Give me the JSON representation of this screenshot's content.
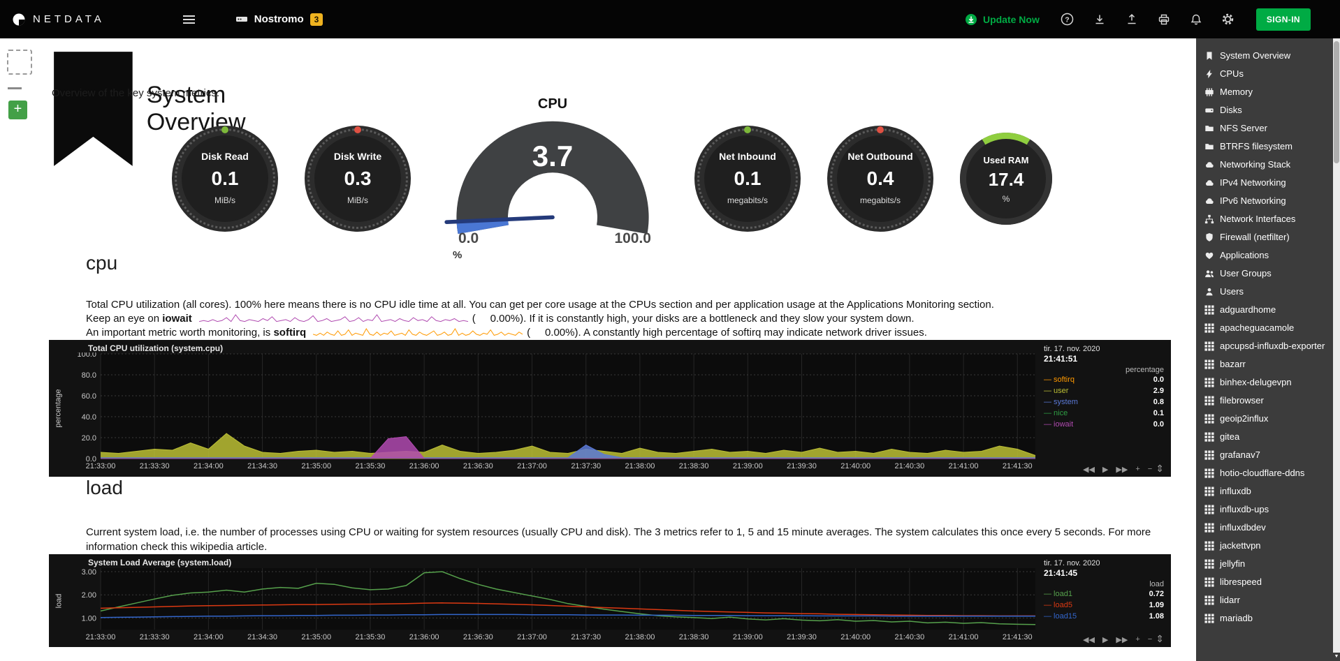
{
  "colors": {
    "brand_green": "#00ab44",
    "badge_amber": "#efb320"
  },
  "navbar": {
    "brand": "NETDATA",
    "host": "Nostromo",
    "host_badge": "3",
    "update_now": "Update Now",
    "signin": "SIGN-IN",
    "icons": [
      "help",
      "download",
      "upload",
      "print",
      "notifications",
      "settings"
    ]
  },
  "page": {
    "title": "System Overview",
    "subtitle": "Overview of the key system metrics.",
    "add_button": "+"
  },
  "gauges": {
    "disk_read": {
      "label": "Disk Read",
      "value": "0.1",
      "unit": "MiB/s",
      "dot": "#7db83a"
    },
    "disk_write": {
      "label": "Disk Write",
      "value": "0.3",
      "unit": "MiB/s",
      "dot": "#e05143"
    },
    "cpu": {
      "label": "CPU",
      "value": "3.7",
      "min": "0.0",
      "max": "100.0",
      "unit": "%"
    },
    "net_inbound": {
      "label": "Net Inbound",
      "value": "0.1",
      "unit": "megabits/s",
      "dot": "#7db83a"
    },
    "net_outbound": {
      "label": "Net Outbound",
      "value": "0.4",
      "unit": "megabits/s",
      "dot": "#e05143"
    },
    "used_ram": {
      "label": "Used RAM",
      "value": "17.4",
      "unit": "%",
      "percent": 17.4,
      "color": "#8fce3f"
    }
  },
  "cpu_section": {
    "heading": "cpu",
    "desc1": "Total CPU utilization (all cores). 100% here means there is no CPU idle time at all. You can get per core usage at the CPUs section and per application usage at the Applications Monitoring section.",
    "desc2_pre": "Keep an eye on ",
    "desc2_bold": "iowait",
    "desc2_post": "(     0.00%). If it is constantly high, your disks are a bottleneck and they slow your system down.",
    "desc3_pre": "An important metric worth monitoring, is ",
    "desc3_bold": "softirq",
    "desc3_post": "(     0.00%). A constantly high percentage of softirq may indicate network driver issues.",
    "spark_iowait": {
      "color": "#b04ab0",
      "points": [
        1,
        2,
        1,
        3,
        1,
        2,
        5,
        1,
        8,
        2,
        1,
        3,
        2,
        1,
        4,
        2,
        6,
        1,
        2,
        3,
        1,
        5,
        2,
        1,
        3,
        7,
        1,
        2,
        4,
        1,
        2,
        3,
        6,
        1,
        2,
        5,
        1,
        3,
        2,
        8,
        1,
        2,
        3,
        1,
        4,
        2,
        1,
        5,
        2,
        3,
        1,
        6,
        2,
        1,
        3,
        2,
        4,
        1,
        2,
        1
      ]
    },
    "spark_softirq": {
      "color": "#ff9900",
      "points": [
        2,
        1,
        3,
        1,
        4,
        2,
        1,
        5,
        1,
        2,
        6,
        1,
        3,
        2,
        1,
        7,
        2,
        1,
        4,
        1,
        3,
        2,
        5,
        1,
        2,
        3,
        1,
        6,
        2,
        1,
        4,
        2,
        1,
        3,
        5,
        1,
        2,
        4,
        1,
        2,
        7,
        1,
        3,
        1,
        2,
        5,
        2,
        1,
        3,
        2,
        6,
        1,
        2,
        4,
        1,
        3,
        2,
        1,
        4,
        2
      ]
    }
  },
  "load_section": {
    "heading": "load",
    "desc": "Current system load, i.e. the number of processes using CPU or waiting for system resources (usually CPU and disk). The 3 metrics refer to 1, 5 and 15 minute averages. The system calculates this once every 5 seconds. For more information check this wikipedia article."
  },
  "chart_ui": {
    "toolbar": [
      {
        "name": "pan-left",
        "glyph": "◀◀"
      },
      {
        "name": "play",
        "glyph": "▶"
      },
      {
        "name": "pan-right",
        "glyph": "▶▶"
      },
      {
        "name": "zoom-in",
        "glyph": "+"
      },
      {
        "name": "zoom-out",
        "glyph": "−"
      }
    ],
    "resize": "⇕"
  },
  "chart_data": [
    {
      "type": "area",
      "title": "Total CPU utilization (system.cpu)",
      "ylabel": "percentage",
      "ylim": [
        0,
        100
      ],
      "yticks": [
        {
          "v": 100,
          "l": "100.0"
        },
        {
          "v": 80,
          "l": "80.0"
        },
        {
          "v": 60,
          "l": "60.0"
        },
        {
          "v": 40,
          "l": "40.0"
        },
        {
          "v": 20,
          "l": "20.0"
        },
        {
          "v": 0,
          "l": "0.0"
        }
      ],
      "interval_sec": 10,
      "xtick_interval_sec": 30,
      "xticks": [
        "21:33:00",
        "21:33:30",
        "21:34:00",
        "21:34:30",
        "21:35:00",
        "21:35:30",
        "21:36:00",
        "21:36:30",
        "21:37:00",
        "21:37:30",
        "21:38:00",
        "21:38:30",
        "21:39:00",
        "21:39:30",
        "21:40:00",
        "21:40:30",
        "21:41:00",
        "21:41:30"
      ],
      "legend_date": "tir. 17. nov. 2020",
      "legend_time": "21:41:51",
      "legend_units": "percentage",
      "series": [
        {
          "name": "softirq",
          "color": "#ff9900",
          "value": "0.0",
          "points": [
            0,
            0,
            0,
            0,
            0,
            0,
            0,
            0,
            0,
            0,
            0,
            0,
            0,
            0,
            0,
            0,
            0,
            0,
            0,
            0,
            0,
            0,
            0,
            0,
            0,
            0,
            0,
            0,
            0,
            0,
            0,
            0,
            0,
            0,
            0,
            0,
            0,
            0,
            0,
            0,
            0,
            0,
            0,
            0,
            0,
            0,
            0,
            0,
            0,
            0,
            0,
            0,
            0
          ]
        },
        {
          "name": "user",
          "color": "#bcbf35",
          "value": "2.9",
          "points": [
            6,
            5,
            7,
            9,
            8,
            15,
            9,
            24,
            12,
            6,
            5,
            7,
            8,
            6,
            7,
            5,
            6,
            7,
            6,
            13,
            7,
            5,
            6,
            8,
            12,
            6,
            5,
            9,
            7,
            5,
            10,
            6,
            5,
            7,
            9,
            6,
            7,
            5,
            8,
            6,
            10,
            6,
            7,
            5,
            9,
            6,
            5,
            8,
            6,
            7,
            12,
            9,
            3
          ]
        },
        {
          "name": "system",
          "color": "#5b79d6",
          "value": "0.8",
          "points": [
            0.8,
            0.8,
            0.8,
            0.8,
            0.8,
            0.8,
            0.8,
            0.8,
            0.8,
            0.8,
            0.8,
            0.8,
            0.8,
            0.8,
            0.8,
            0.8,
            0.8,
            0.8,
            0.8,
            0.8,
            0.8,
            0.8,
            0.8,
            0.8,
            0.8,
            0.8,
            0.8,
            13,
            4,
            0.8,
            0.8,
            0.8,
            0.8,
            0.8,
            0.8,
            0.8,
            0.8,
            0.8,
            0.8,
            0.8,
            0.8,
            0.8,
            0.8,
            0.8,
            0.8,
            0.8,
            0.8,
            0.8,
            0.8,
            0.8,
            0.8,
            0.8,
            0.8
          ]
        },
        {
          "name": "nice",
          "color": "#2f9e44",
          "value": "0.1",
          "points": [
            0.1,
            0.1,
            0.1,
            0.1,
            0.1,
            0.1,
            0.1,
            0.1,
            0.1,
            0.1,
            0.1,
            0.1,
            0.1,
            0.1,
            0.1,
            0.1,
            0.1,
            0.1,
            0.1,
            0.1,
            0.1,
            0.1,
            0.1,
            0.1,
            0.1,
            0.1,
            0.1,
            0.1,
            0.1,
            0.1,
            0.1,
            0.1,
            0.1,
            0.1,
            0.1,
            0.1,
            0.1,
            0.1,
            0.1,
            0.1,
            0.1,
            0.1,
            0.1,
            0.1,
            0.1,
            0.1,
            0.1,
            0.1,
            0.1,
            0.1,
            0.1,
            0.1,
            0.1
          ]
        },
        {
          "name": "iowait",
          "color": "#b04ab0",
          "value": "0.0",
          "points": [
            0,
            0,
            0,
            0,
            0,
            0,
            0,
            0,
            0,
            0,
            0,
            0,
            0,
            0,
            0,
            0,
            19,
            21,
            0,
            0,
            0,
            0,
            0,
            0,
            0,
            0,
            0,
            0,
            0,
            0,
            0,
            0,
            0,
            0,
            0,
            0,
            0,
            0,
            0,
            0,
            0,
            0,
            0,
            0,
            0,
            0,
            0,
            0,
            0,
            0,
            0,
            0,
            0
          ]
        }
      ]
    },
    {
      "type": "line",
      "title": "System Load Average (system.load)",
      "ylabel": "load",
      "ylim": [
        0.5,
        3.15
      ],
      "yticks": [
        {
          "v": 3,
          "l": "3.00"
        },
        {
          "v": 2,
          "l": "2.00"
        },
        {
          "v": 1,
          "l": "1.00"
        }
      ],
      "interval_sec": 10,
      "xtick_interval_sec": 30,
      "xticks": [
        "21:33:00",
        "21:33:30",
        "21:34:00",
        "21:34:30",
        "21:35:00",
        "21:35:30",
        "21:36:00",
        "21:36:30",
        "21:37:00",
        "21:37:30",
        "21:38:00",
        "21:38:30",
        "21:39:00",
        "21:39:30",
        "21:40:00",
        "21:40:30",
        "21:41:00",
        "21:41:30"
      ],
      "legend_date": "tir. 17. nov. 2020",
      "legend_time": "21:41:45",
      "legend_units": "load",
      "series": [
        {
          "name": "load1",
          "color": "#56a14c",
          "value": "0.72",
          "points": [
            1.3,
            1.48,
            1.65,
            1.82,
            1.98,
            2.08,
            2.12,
            2.2,
            2.12,
            2.25,
            2.32,
            2.28,
            2.5,
            2.45,
            2.3,
            2.22,
            2.25,
            2.4,
            2.95,
            3.0,
            2.7,
            2.45,
            2.25,
            2.1,
            1.95,
            1.8,
            1.62,
            1.5,
            1.38,
            1.28,
            1.18,
            1.1,
            1.05,
            1.02,
            0.98,
            1.04,
            0.96,
            0.92,
            0.97,
            0.91,
            0.88,
            0.93,
            0.86,
            0.89,
            0.83,
            0.86,
            0.79,
            0.82,
            0.77,
            0.8,
            0.75,
            0.73,
            0.72
          ]
        },
        {
          "name": "load5",
          "color": "#dc3912",
          "value": "1.09",
          "points": [
            1.42,
            1.44,
            1.46,
            1.48,
            1.5,
            1.52,
            1.53,
            1.54,
            1.55,
            1.56,
            1.57,
            1.58,
            1.58,
            1.59,
            1.6,
            1.6,
            1.61,
            1.62,
            1.64,
            1.65,
            1.64,
            1.63,
            1.61,
            1.59,
            1.57,
            1.54,
            1.51,
            1.48,
            1.45,
            1.42,
            1.39,
            1.36,
            1.33,
            1.3,
            1.28,
            1.26,
            1.24,
            1.22,
            1.21,
            1.19,
            1.18,
            1.16,
            1.15,
            1.14,
            1.13,
            1.12,
            1.11,
            1.11,
            1.1,
            1.1,
            1.09,
            1.09,
            1.09
          ]
        },
        {
          "name": "load15",
          "color": "#3366cc",
          "value": "1.08",
          "points": [
            1.02,
            1.03,
            1.04,
            1.05,
            1.06,
            1.07,
            1.08,
            1.08,
            1.09,
            1.1,
            1.1,
            1.11,
            1.11,
            1.12,
            1.12,
            1.13,
            1.13,
            1.14,
            1.14,
            1.15,
            1.15,
            1.15,
            1.15,
            1.15,
            1.14,
            1.14,
            1.14,
            1.13,
            1.13,
            1.13,
            1.12,
            1.12,
            1.12,
            1.11,
            1.11,
            1.11,
            1.1,
            1.1,
            1.1,
            1.1,
            1.09,
            1.09,
            1.09,
            1.09,
            1.08,
            1.08,
            1.08,
            1.08,
            1.08,
            1.08,
            1.08,
            1.08,
            1.08
          ]
        }
      ]
    }
  ],
  "sidebar": {
    "items": [
      {
        "icon": "bookmark",
        "label": "System Overview"
      },
      {
        "icon": "bolt",
        "label": "CPUs"
      },
      {
        "icon": "memory",
        "label": "Memory"
      },
      {
        "icon": "disk",
        "label": "Disks"
      },
      {
        "icon": "folder",
        "label": "NFS Server"
      },
      {
        "icon": "folder",
        "label": "BTRFS filesystem"
      },
      {
        "icon": "cloud",
        "label": "Networking Stack"
      },
      {
        "icon": "cloud",
        "label": "IPv4 Networking"
      },
      {
        "icon": "cloud",
        "label": "IPv6 Networking"
      },
      {
        "icon": "sitemap",
        "label": "Network Interfaces"
      },
      {
        "icon": "shield",
        "label": "Firewall (netfilter)"
      },
      {
        "icon": "heart",
        "label": "Applications"
      },
      {
        "icon": "users",
        "label": "User Groups"
      },
      {
        "icon": "user",
        "label": "Users"
      },
      {
        "icon": "grid",
        "label": "adguardhome"
      },
      {
        "icon": "grid",
        "label": "apacheguacamole"
      },
      {
        "icon": "grid",
        "label": "apcupsd-influxdb-exporter"
      },
      {
        "icon": "grid",
        "label": "bazarr"
      },
      {
        "icon": "grid",
        "label": "binhex-delugevpn"
      },
      {
        "icon": "grid",
        "label": "filebrowser"
      },
      {
        "icon": "grid",
        "label": "geoip2influx"
      },
      {
        "icon": "grid",
        "label": "gitea"
      },
      {
        "icon": "grid",
        "label": "grafanav7"
      },
      {
        "icon": "grid",
        "label": "hotio-cloudflare-ddns"
      },
      {
        "icon": "grid",
        "label": "influxdb"
      },
      {
        "icon": "grid",
        "label": "influxdb-ups"
      },
      {
        "icon": "grid",
        "label": "influxdbdev"
      },
      {
        "icon": "grid",
        "label": "jackettvpn"
      },
      {
        "icon": "grid",
        "label": "jellyfin"
      },
      {
        "icon": "grid",
        "label": "librespeed"
      },
      {
        "icon": "grid",
        "label": "lidarr"
      },
      {
        "icon": "grid",
        "label": "mariadb"
      }
    ]
  }
}
